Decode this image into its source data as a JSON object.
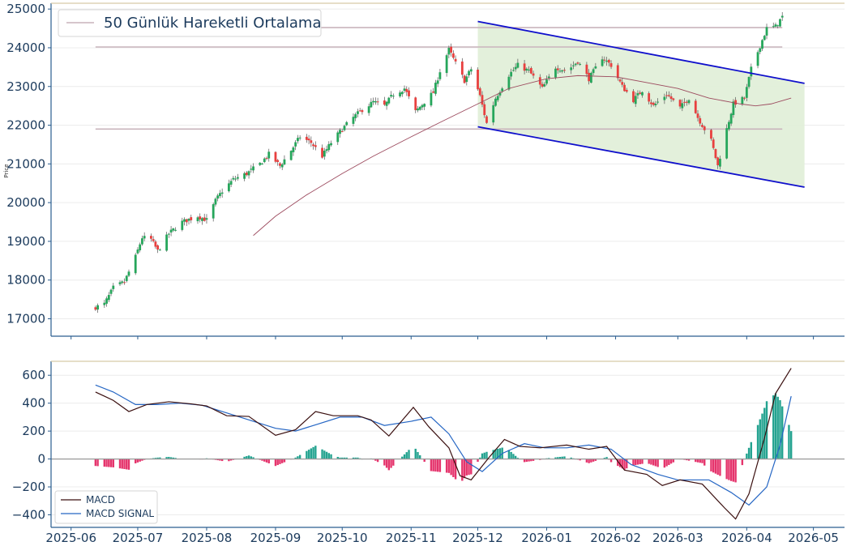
{
  "chart_data": [
    {
      "type": "candlestick",
      "ylabel": "Price",
      "ylim": [
        16550,
        25150
      ],
      "yticks": [
        "17000",
        "18000",
        "19000",
        "20000",
        "21000",
        "22000",
        "23000",
        "24000",
        "25000"
      ],
      "legend": {
        "label": "50 Günlük Hareketli Ortalama",
        "position": "top-left"
      },
      "horizontal_levels": [
        24520,
        24020,
        21900
      ],
      "channel": {
        "color": "#1010cc",
        "fill": "#e2efd9",
        "upper": [
          [
            "2025-12-01",
            24680
          ],
          [
            "2026-04-27",
            23080
          ]
        ],
        "lower": [
          [
            "2025-12-01",
            21960
          ],
          [
            "2026-04-27",
            20400
          ]
        ]
      },
      "colors": {
        "up": "#26a65b",
        "down": "#e8403f",
        "ma": "#9c4a5e",
        "level": "#c9b4bc"
      },
      "anchors": [
        [
          "2025-06-12",
          17300
        ],
        [
          "2025-06-16",
          17380
        ],
        [
          "2025-06-20",
          17800
        ],
        [
          "2025-06-25",
          17950
        ],
        [
          "2025-06-30",
          18600
        ],
        [
          "2025-07-03",
          19100
        ],
        [
          "2025-07-07",
          19050
        ],
        [
          "2025-07-10",
          18750
        ],
        [
          "2025-07-15",
          19200
        ],
        [
          "2025-07-21",
          19500
        ],
        [
          "2025-07-28",
          19650
        ],
        [
          "2025-08-01",
          19550
        ],
        [
          "2025-08-05",
          20050
        ],
        [
          "2025-08-08",
          20300
        ],
        [
          "2025-08-13",
          20600
        ],
        [
          "2025-08-19",
          20750
        ],
        [
          "2025-08-25",
          21000
        ],
        [
          "2025-08-29",
          21250
        ],
        [
          "2025-09-03",
          20950
        ],
        [
          "2025-09-08",
          21350
        ],
        [
          "2025-09-12",
          21700
        ],
        [
          "2025-09-17",
          21550
        ],
        [
          "2025-09-22",
          21200
        ],
        [
          "2025-09-26",
          21550
        ],
        [
          "2025-10-01",
          21900
        ],
        [
          "2025-10-06",
          22200
        ],
        [
          "2025-10-10",
          22400
        ],
        [
          "2025-10-15",
          22600
        ],
        [
          "2025-10-20",
          22500
        ],
        [
          "2025-10-24",
          22800
        ],
        [
          "2025-10-29",
          22950
        ],
        [
          "2025-11-03",
          22350
        ],
        [
          "2025-11-07",
          22600
        ],
        [
          "2025-11-11",
          22850
        ],
        [
          "2025-11-14",
          23400
        ],
        [
          "2025-11-18",
          23950
        ],
        [
          "2025-11-21",
          23600
        ],
        [
          "2025-11-25",
          23150
        ],
        [
          "2025-11-28",
          23450
        ],
        [
          "2025-12-02",
          22750
        ],
        [
          "2025-12-05",
          22050
        ],
        [
          "2025-12-09",
          22700
        ],
        [
          "2025-12-15",
          23300
        ],
        [
          "2025-12-19",
          23550
        ],
        [
          "2025-12-24",
          23400
        ],
        [
          "2025-12-30",
          22950
        ],
        [
          "2026-01-05",
          23500
        ],
        [
          "2026-01-10",
          23400
        ],
        [
          "2026-01-15",
          23650
        ],
        [
          "2026-01-20",
          23200
        ],
        [
          "2026-01-26",
          23750
        ],
        [
          "2026-01-30",
          23550
        ],
        [
          "2026-02-04",
          23000
        ],
        [
          "2026-02-09",
          22650
        ],
        [
          "2026-02-13",
          22900
        ],
        [
          "2026-02-18",
          22500
        ],
        [
          "2026-02-24",
          22800
        ],
        [
          "2026-03-02",
          22450
        ],
        [
          "2026-03-06",
          22700
        ],
        [
          "2026-03-10",
          22200
        ],
        [
          "2026-03-16",
          21600
        ],
        [
          "2026-03-19",
          20950
        ],
        [
          "2026-03-23",
          21900
        ],
        [
          "2026-03-26",
          22550
        ],
        [
          "2026-03-31",
          22700
        ],
        [
          "2026-04-03",
          23450
        ],
        [
          "2026-04-07",
          24050
        ],
        [
          "2026-04-10",
          24500
        ],
        [
          "2026-04-14",
          24550
        ],
        [
          "2026-04-17",
          24800
        ]
      ],
      "ma50": [
        [
          "2025-08-22",
          19150
        ],
        [
          "2025-09-01",
          19650
        ],
        [
          "2025-09-15",
          20200
        ],
        [
          "2025-10-01",
          20750
        ],
        [
          "2025-10-15",
          21200
        ],
        [
          "2025-11-01",
          21700
        ],
        [
          "2025-11-15",
          22100
        ],
        [
          "2025-12-01",
          22550
        ],
        [
          "2025-12-15",
          22950
        ],
        [
          "2026-01-01",
          23200
        ],
        [
          "2026-01-15",
          23280
        ],
        [
          "2026-02-01",
          23250
        ],
        [
          "2026-02-15",
          23100
        ],
        [
          "2026-03-01",
          22950
        ],
        [
          "2026-03-15",
          22700
        ],
        [
          "2026-03-29",
          22550
        ],
        [
          "2026-04-05",
          22500
        ],
        [
          "2026-04-12",
          22550
        ],
        [
          "2026-04-21",
          22700
        ]
      ]
    },
    {
      "type": "line+bar",
      "ylim": [
        -490,
        700
      ],
      "yticks": [
        "600",
        "400",
        "200",
        "0",
        "−200",
        "−400"
      ],
      "legend": {
        "entries": [
          "MACD",
          "MACD SIGNAL"
        ],
        "position": "lower-left"
      },
      "colors": {
        "macd": "#3a0f0f",
        "signal": "#2566c4",
        "hist_pos": "#24a390",
        "hist_neg": "#e5346c"
      },
      "macd": [
        [
          "2025-06-12",
          480
        ],
        [
          "2025-06-20",
          420
        ],
        [
          "2025-06-27",
          340
        ],
        [
          "2025-07-05",
          390
        ],
        [
          "2025-07-15",
          410
        ],
        [
          "2025-07-25",
          395
        ],
        [
          "2025-08-01",
          380
        ],
        [
          "2025-08-10",
          310
        ],
        [
          "2025-08-20",
          305
        ],
        [
          "2025-09-01",
          170
        ],
        [
          "2025-09-10",
          210
        ],
        [
          "2025-09-19",
          340
        ],
        [
          "2025-09-27",
          310
        ],
        [
          "2025-10-08",
          310
        ],
        [
          "2025-10-14",
          280
        ],
        [
          "2025-10-22",
          165
        ],
        [
          "2025-11-02",
          370
        ],
        [
          "2025-11-09",
          230
        ],
        [
          "2025-11-18",
          80
        ],
        [
          "2025-11-23",
          -120
        ],
        [
          "2025-11-28",
          -150
        ],
        [
          "2025-12-06",
          10
        ],
        [
          "2025-12-13",
          140
        ],
        [
          "2025-12-20",
          90
        ],
        [
          "2025-12-29",
          80
        ],
        [
          "2026-01-10",
          100
        ],
        [
          "2026-01-20",
          70
        ],
        [
          "2026-01-28",
          90
        ],
        [
          "2026-02-05",
          -80
        ],
        [
          "2026-02-15",
          -110
        ],
        [
          "2026-02-22",
          -190
        ],
        [
          "2026-03-02",
          -150
        ],
        [
          "2026-03-12",
          -180
        ],
        [
          "2026-03-22",
          -350
        ],
        [
          "2026-03-27",
          -430
        ],
        [
          "2026-04-02",
          -250
        ],
        [
          "2026-04-09",
          150
        ],
        [
          "2026-04-14",
          470
        ],
        [
          "2026-04-21",
          650
        ]
      ],
      "signal": [
        [
          "2025-06-12",
          530
        ],
        [
          "2025-06-20",
          480
        ],
        [
          "2025-06-30",
          390
        ],
        [
          "2025-07-10",
          390
        ],
        [
          "2025-07-20",
          400
        ],
        [
          "2025-07-30",
          385
        ],
        [
          "2025-08-10",
          330
        ],
        [
          "2025-08-20",
          280
        ],
        [
          "2025-09-01",
          220
        ],
        [
          "2025-09-10",
          200
        ],
        [
          "2025-09-20",
          250
        ],
        [
          "2025-09-30",
          300
        ],
        [
          "2025-10-10",
          300
        ],
        [
          "2025-10-20",
          240
        ],
        [
          "2025-11-01",
          270
        ],
        [
          "2025-11-10",
          300
        ],
        [
          "2025-11-18",
          180
        ],
        [
          "2025-11-26",
          -20
        ],
        [
          "2025-12-03",
          -90
        ],
        [
          "2025-12-12",
          40
        ],
        [
          "2025-12-22",
          110
        ],
        [
          "2025-12-31",
          80
        ],
        [
          "2026-01-10",
          80
        ],
        [
          "2026-01-20",
          100
        ],
        [
          "2026-01-30",
          70
        ],
        [
          "2026-02-08",
          -40
        ],
        [
          "2026-02-20",
          -110
        ],
        [
          "2026-03-01",
          -150
        ],
        [
          "2026-03-15",
          -150
        ],
        [
          "2026-03-25",
          -240
        ],
        [
          "2026-04-02",
          -330
        ],
        [
          "2026-04-10",
          -200
        ],
        [
          "2026-04-16",
          100
        ],
        [
          "2026-04-21",
          450
        ]
      ]
    }
  ],
  "xaxis": {
    "ticks": [
      "2025-06",
      "2025-07",
      "2025-08",
      "2025-09",
      "2025-10",
      "2025-11",
      "2025-12",
      "2026-01",
      "2026-02",
      "2026-03",
      "2026-04",
      "2026-05"
    ],
    "tick_dates": [
      "2025-06-01",
      "2025-07-01",
      "2025-08-01",
      "2025-09-01",
      "2025-10-01",
      "2025-11-01",
      "2025-12-01",
      "2026-01-01",
      "2026-02-01",
      "2026-03-01",
      "2026-04-01",
      "2026-05-01"
    ],
    "range": [
      "2025-05-23",
      "2026-05-15"
    ]
  }
}
